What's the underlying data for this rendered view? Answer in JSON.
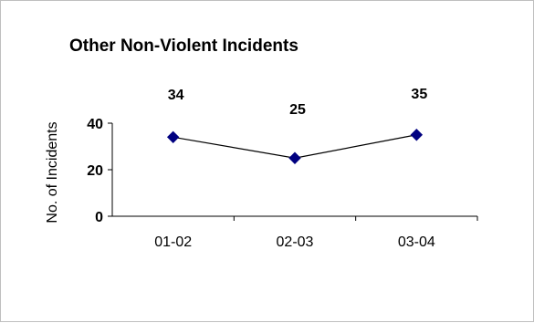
{
  "chart_data": {
    "type": "line",
    "title": "Other Non-Violent Incidents",
    "xlabel": "",
    "ylabel": "No. of Incidents",
    "categories": [
      "01-02",
      "02-03",
      "03-04"
    ],
    "values": [
      34,
      25,
      35
    ],
    "data_labels": [
      "34",
      "25",
      "35"
    ],
    "y_ticks": [
      "0",
      "20",
      "40"
    ],
    "ylim": [
      0,
      40
    ],
    "grid": false,
    "legend": "none",
    "line_color": "#000000",
    "marker_color": "#000080",
    "marker": "diamond"
  }
}
